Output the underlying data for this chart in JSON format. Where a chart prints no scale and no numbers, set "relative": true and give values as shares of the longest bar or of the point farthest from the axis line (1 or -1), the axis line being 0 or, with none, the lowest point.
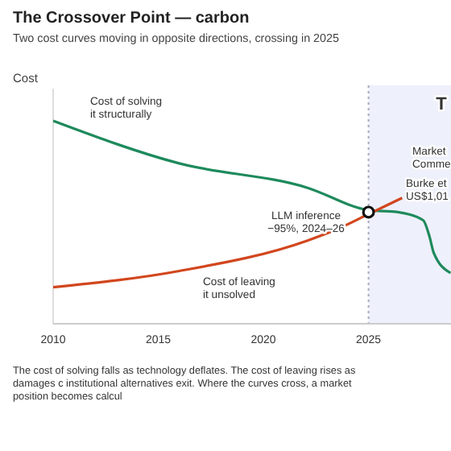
{
  "chart_data": {
    "type": "line",
    "title": "The Crossover Point — carbon",
    "subtitle": "Two cost curves moving in opposite directions, crossing in 2025",
    "ylabel": "Cost",
    "relative": true,
    "xlim": [
      2010,
      2029
    ],
    "xticks": [
      2010,
      2015,
      2020,
      2025
    ],
    "series": [
      {
        "color": "#1e8a5c",
        "x": [
          2010,
          2016,
          2022.1,
          2025,
          2026.4,
          2027.6,
          2027.9,
          2028.1,
          2028.9
        ],
        "values": [
          1.0,
          0.79,
          0.67,
          0.56,
          0.55,
          0.51,
          0.43,
          0.35,
          0.25
        ]
      },
      {
        "color": "#d2461e",
        "x": [
          2010,
          2016,
          2022.1,
          2023.6,
          2025,
          2026.6
        ],
        "values": [
          0.18,
          0.26,
          0.41,
          0.47,
          0.54,
          0.62
        ]
      },
      {
        "type": "scatter",
        "color": "#111111",
        "marker": "circle",
        "x": [
          2025
        ],
        "values": [
          0.55
        ]
      }
    ],
    "bands": [
      {
        "axis": "x",
        "from": 2025,
        "to": 2029,
        "color": "#eef0fb"
      }
    ],
    "annotations": [
      "Cost of solving\nit structurally",
      "Cost of leaving\nit unsolved",
      "LLM inference\n−95%, 2024–26",
      "T",
      "Market\nComme",
      "Burke et\nUS$1,01",
      "The cost of solving falls as technology deflates. The cost of leaving rises as damages c institutional alternatives exit. Where the curves cross, a market position becomes calcul"
    ]
  }
}
